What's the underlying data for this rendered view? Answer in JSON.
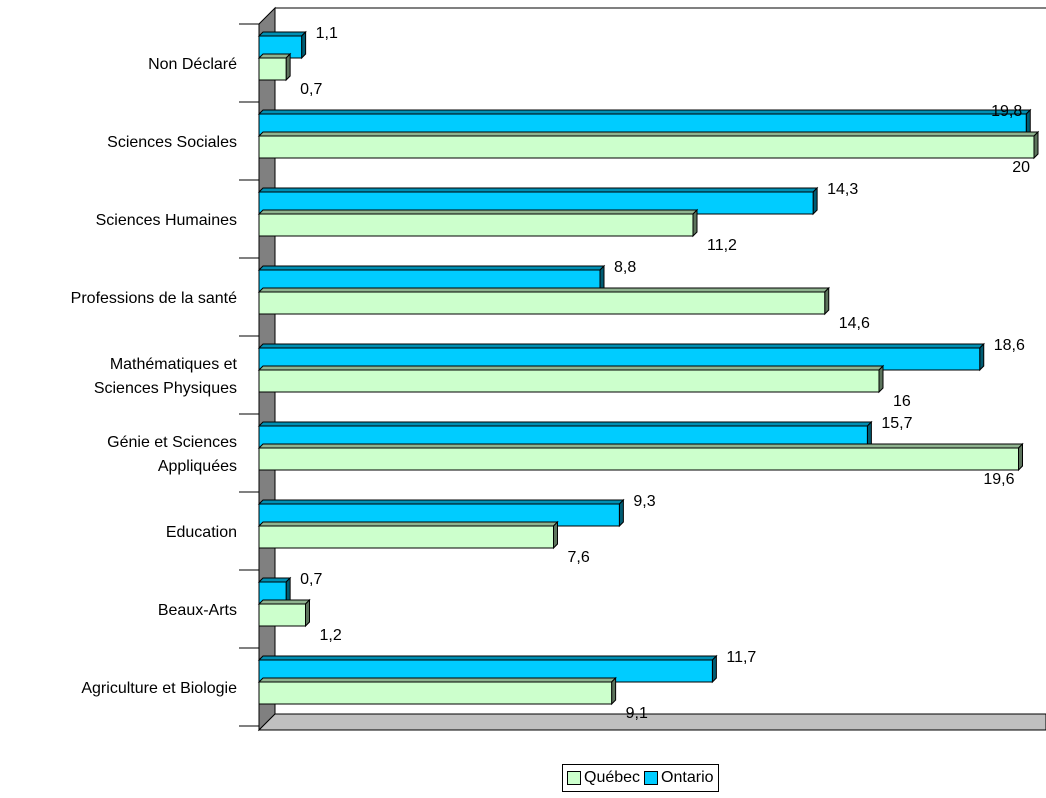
{
  "chart_data": {
    "type": "bar",
    "orientation": "horizontal",
    "categories": [
      "Non Déclaré",
      "Sciences Sociales",
      "Sciences Humaines",
      "Professions de la santé",
      "Mathématiques et Sciences Physiques",
      "Génie et Sciences Appliquées",
      "Education",
      "Beaux-Arts",
      "Agriculture et Biologie"
    ],
    "category_lines": [
      [
        "Non Déclaré"
      ],
      [
        "Sciences Sociales"
      ],
      [
        "Sciences Humaines"
      ],
      [
        "Professions de la santé"
      ],
      [
        "Mathématiques et",
        "Sciences Physiques"
      ],
      [
        "Génie et Sciences",
        "Appliquées"
      ],
      [
        "Education"
      ],
      [
        "Beaux-Arts"
      ],
      [
        "Agriculture et Biologie"
      ]
    ],
    "series": [
      {
        "name": "Ontario",
        "color": "#00ccff",
        "values": [
          1.1,
          19.8,
          14.3,
          8.8,
          18.6,
          15.7,
          9.3,
          0.7,
          11.7
        ],
        "labels": [
          "1,1",
          "19,8",
          "14,3",
          "8,8",
          "18,6",
          "15,7",
          "9,3",
          "0,7",
          "11,7"
        ]
      },
      {
        "name": "Québec",
        "color": "#ccffcc",
        "values": [
          0.7,
          20,
          11.2,
          14.6,
          16,
          19.6,
          7.6,
          1.2,
          9.1
        ],
        "labels": [
          "0,7",
          "20",
          "11,2",
          "14,6",
          "16",
          "19,6",
          "7,6",
          "1,2",
          "9,1"
        ]
      }
    ],
    "xlim": [
      0,
      20
    ],
    "grid": false,
    "legend_position": "bottom",
    "wall_color": "#808080",
    "floor_color": "#c0c0c0"
  },
  "legend": {
    "items": [
      {
        "name": "Québec",
        "color": "#ccffcc"
      },
      {
        "name": "Ontario",
        "color": "#00ccff"
      }
    ]
  }
}
